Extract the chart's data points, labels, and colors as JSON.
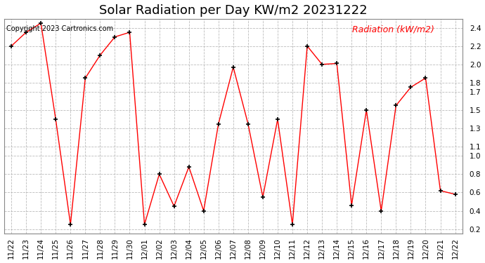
{
  "title": "Solar Radiation per Day KW/m2 20231222",
  "copyright_text": "Copyright 2023 Cartronics.com",
  "legend_label": "Radiation (kW/m2)",
  "dates": [
    "11/22",
    "11/23",
    "11/24",
    "11/25",
    "11/26",
    "11/27",
    "11/28",
    "11/29",
    "11/30",
    "12/01",
    "12/02",
    "12/03",
    "12/04",
    "12/05",
    "12/06",
    "12/07",
    "12/08",
    "12/09",
    "12/10",
    "12/11",
    "12/12",
    "12/13",
    "12/14",
    "12/15",
    "12/16",
    "12/17",
    "12/18",
    "12/19",
    "12/20",
    "12/21",
    "12/22"
  ],
  "values": [
    2.2,
    2.35,
    2.45,
    1.4,
    0.25,
    1.85,
    2.1,
    2.3,
    2.35,
    0.25,
    0.8,
    0.45,
    0.88,
    0.4,
    1.35,
    1.97,
    1.35,
    0.55,
    1.4,
    0.25,
    2.2,
    2.0,
    2.01,
    0.46,
    1.5,
    0.4,
    1.55,
    1.75,
    1.85,
    0.62,
    0.58
  ],
  "yticks": [
    0.2,
    0.4,
    0.6,
    0.8,
    1.0,
    1.1,
    1.3,
    1.5,
    1.7,
    1.8,
    2.0,
    2.2,
    2.4
  ],
  "ylim_min": 0.15,
  "ylim_max": 2.5,
  "line_color": "#ff0000",
  "grid_color": "#bbbbbb",
  "title_fontsize": 13,
  "copyright_fontsize": 7,
  "legend_fontsize": 9,
  "tick_fontsize": 7.5
}
